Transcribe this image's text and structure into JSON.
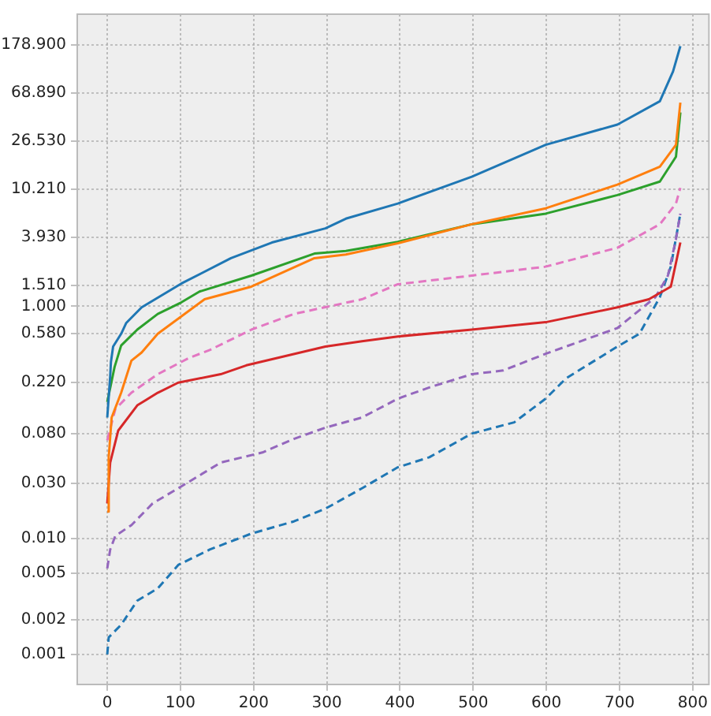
{
  "chart_data": {
    "type": "line",
    "log": "y",
    "grid": true,
    "legend": false,
    "xlim": [
      -41,
      822
    ],
    "xticks": [
      0,
      100,
      200,
      300,
      400,
      500,
      600,
      700,
      800
    ],
    "ylim": [
      0.00055,
      330
    ],
    "yticks": [
      {
        "value": 0.001,
        "label": "0.001"
      },
      {
        "value": 0.002,
        "label": "0.002"
      },
      {
        "value": 0.005,
        "label": "0.005"
      },
      {
        "value": 0.01,
        "label": "0.010"
      },
      {
        "value": 0.03,
        "label": "0.030"
      },
      {
        "value": 0.08,
        "label": "0.080"
      },
      {
        "value": 0.22,
        "label": "0.220"
      },
      {
        "value": 0.58,
        "label": "0.580"
      },
      {
        "value": 1,
        "label": "1.000"
      },
      {
        "value": 1.51,
        "label": "1.510"
      },
      {
        "value": 3.93,
        "label": "3.930"
      },
      {
        "value": 10.21,
        "label": "10.210"
      },
      {
        "value": 26.53,
        "label": "26.530"
      },
      {
        "value": 68.89,
        "label": "68.890"
      },
      {
        "value": 178.9,
        "label": "178.900"
      }
    ],
    "series": [
      {
        "color": "#1f77b4",
        "line_style": "solid",
        "x": [
          0,
          4,
          5,
          8,
          19,
          26,
          47,
          101,
          169,
          225,
          298,
          326,
          397,
          498,
          599,
          697,
          755,
          773,
          783
        ],
        "values": [
          0.11,
          0.25,
          0.33,
          0.45,
          0.58,
          0.72,
          0.98,
          1.57,
          2.6,
          3.55,
          4.7,
          5.7,
          7.7,
          13.1,
          24.7,
          36.9,
          58.6,
          106,
          175
        ]
      },
      {
        "color": "#ff7f0e",
        "line_style": "solid",
        "x": [
          0,
          2,
          6,
          19,
          33,
          47,
          69,
          133,
          197,
          283,
          326,
          397,
          498,
          599,
          697,
          755,
          777,
          783
        ],
        "values": [
          0.017,
          0.05,
          0.11,
          0.18,
          0.34,
          0.4,
          0.58,
          1.15,
          1.48,
          2.6,
          2.8,
          3.5,
          5.1,
          7,
          11.2,
          16,
          24.7,
          57
        ]
      },
      {
        "color": "#2ca02c",
        "line_style": "solid",
        "x": [
          0,
          10,
          19,
          41,
          69,
          101,
          126,
          197,
          283,
          326,
          397,
          498,
          599,
          697,
          755,
          777,
          783
        ],
        "values": [
          0.15,
          0.3,
          0.46,
          0.63,
          0.86,
          1.08,
          1.34,
          1.84,
          2.85,
          3,
          3.6,
          5.1,
          6.3,
          9.1,
          11.9,
          19.5,
          47
        ]
      },
      {
        "color": "#d62728",
        "line_style": "solid",
        "x": [
          0,
          4,
          15,
          41,
          69,
          97,
          155,
          190,
          298,
          348,
          397,
          498,
          599,
          697,
          740,
          770,
          783
        ],
        "values": [
          0.02,
          0.045,
          0.085,
          0.14,
          0.18,
          0.22,
          0.26,
          0.31,
          0.45,
          0.5,
          0.55,
          0.63,
          0.73,
          0.98,
          1.15,
          1.48,
          3.55
        ]
      },
      {
        "color": "#e377c2",
        "line_style": "dashed",
        "x": [
          0,
          11,
          33,
          69,
          112,
          140,
          197,
          255,
          348,
          397,
          498,
          599,
          697,
          755,
          777,
          783
        ],
        "values": [
          0.07,
          0.13,
          0.18,
          0.26,
          0.36,
          0.42,
          0.63,
          0.86,
          1.15,
          1.55,
          1.84,
          2.2,
          3.2,
          5.1,
          7.7,
          10.5
        ]
      },
      {
        "color": "#9467bd",
        "line_style": "dashed",
        "x": [
          0,
          4,
          11,
          33,
          62,
          97,
          155,
          212,
          255,
          298,
          348,
          397,
          440,
          498,
          541,
          599,
          697,
          749,
          766,
          777,
          783
        ],
        "values": [
          0.0055,
          0.008,
          0.0105,
          0.013,
          0.02,
          0.027,
          0.045,
          0.055,
          0.072,
          0.09,
          0.11,
          0.16,
          0.2,
          0.26,
          0.28,
          0.39,
          0.65,
          1.2,
          1.84,
          3.8,
          6.3
        ]
      },
      {
        "color": "#1f77b4",
        "line_style": "dashed",
        "x": [
          0,
          2,
          19,
          41,
          69,
          97,
          140,
          197,
          255,
          298,
          348,
          397,
          440,
          498,
          556,
          599,
          627,
          697,
          727,
          755,
          770,
          783
        ],
        "values": [
          0.001,
          0.0014,
          0.0018,
          0.0029,
          0.0037,
          0.0059,
          0.008,
          0.011,
          0.014,
          0.018,
          0.027,
          0.041,
          0.05,
          0.08,
          0.1,
          0.16,
          0.24,
          0.45,
          0.58,
          1.2,
          2.2,
          6.3
        ]
      }
    ]
  }
}
